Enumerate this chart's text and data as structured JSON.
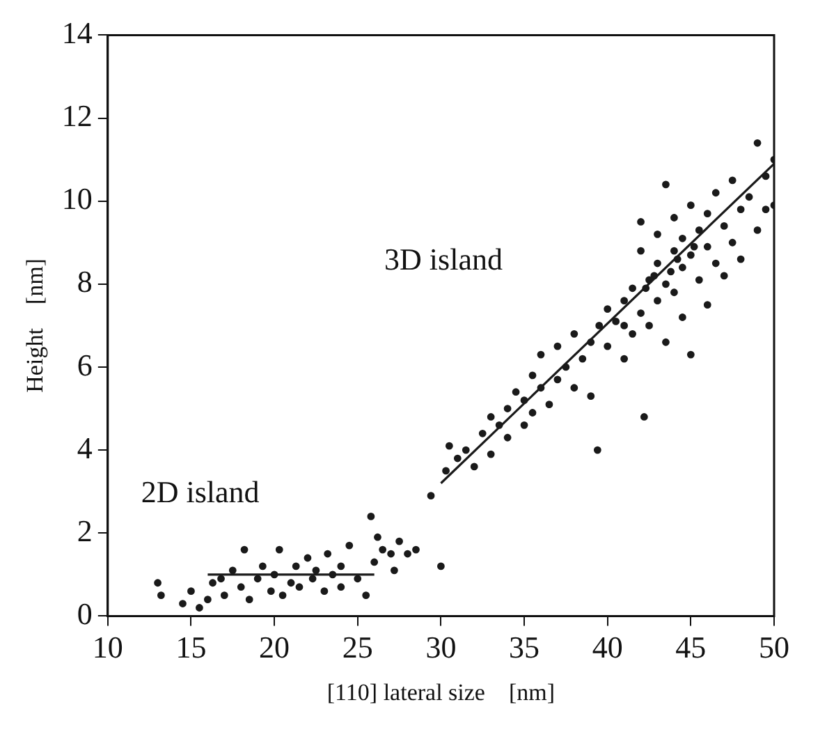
{
  "chart_data": {
    "type": "scatter",
    "xlabel": "[110] lateral size    [nm]",
    "ylabel": "Height    [nm]",
    "xlim": [
      10,
      50
    ],
    "xticks": [
      10,
      15,
      20,
      25,
      30,
      35,
      40,
      45,
      50
    ],
    "ylim": [
      0,
      14
    ],
    "yticks": [
      0,
      2,
      4,
      6,
      8,
      10,
      12,
      14
    ],
    "annotations": [
      "2D island",
      "3D island"
    ],
    "series": [
      {
        "marker": "circle",
        "color": "#1a1a1a",
        "x": [
          13,
          13.2,
          14.5,
          15,
          15.5,
          16,
          16.3,
          16.8,
          17,
          17.5,
          18,
          18.2,
          18.5,
          19,
          19.3,
          19.8,
          20,
          20.3,
          20.5,
          21,
          21.3,
          21.5,
          22,
          22.3,
          22.5,
          23,
          23.2,
          23.5,
          24,
          24,
          24.5,
          25,
          25.8,
          25.5,
          26,
          26.2,
          26.5,
          27,
          27.2,
          27.5,
          29.4,
          28,
          28.5,
          30,
          30.3,
          30.5,
          31,
          31.5,
          32,
          32.5,
          33,
          33,
          33.5,
          34,
          34,
          34.5,
          35,
          35,
          35.5,
          35.5,
          36,
          36,
          36.5,
          37,
          37,
          39.4,
          37.5,
          38,
          38,
          38.5,
          39,
          39,
          39.5,
          40,
          40,
          42.2,
          40.5,
          41,
          41,
          41.5,
          41.5,
          42,
          42,
          42,
          42.5,
          42.5,
          43,
          43,
          43,
          43.5,
          43.5,
          43.5,
          44,
          44,
          44,
          44.5,
          44.5,
          44.5,
          45,
          45,
          45,
          45.5,
          45.5,
          46,
          46,
          46,
          46.5,
          46.5,
          47,
          47,
          47.5,
          47.5,
          48,
          48,
          48.5,
          49,
          49,
          49.5,
          49.5,
          50,
          50,
          41,
          42.3,
          43.8,
          44.2,
          45.2,
          42.8
        ],
        "values": [
          0.8,
          0.5,
          0.3,
          0.6,
          0.2,
          0.4,
          0.8,
          0.9,
          0.5,
          1.1,
          0.7,
          1.6,
          0.4,
          0.9,
          1.2,
          0.6,
          1.0,
          1.6,
          0.5,
          0.8,
          1.2,
          0.7,
          1.4,
          0.9,
          1.1,
          0.6,
          1.5,
          1.0,
          1.2,
          0.7,
          1.7,
          0.9,
          2.4,
          0.5,
          1.3,
          1.9,
          1.6,
          1.5,
          1.1,
          1.8,
          2.9,
          1.5,
          1.6,
          1.2,
          3.5,
          4.1,
          3.8,
          4.0,
          3.6,
          4.4,
          4.8,
          3.9,
          4.6,
          5.0,
          4.3,
          5.4,
          5.2,
          4.6,
          5.8,
          4.9,
          5.5,
          6.3,
          5.1,
          5.7,
          6.5,
          4.0,
          6.0,
          5.5,
          6.8,
          6.2,
          6.6,
          5.3,
          7.0,
          6.5,
          7.4,
          4.8,
          7.1,
          7.6,
          6.2,
          7.9,
          6.8,
          8.8,
          7.3,
          9.5,
          8.1,
          7.0,
          8.5,
          9.2,
          7.6,
          10.4,
          8.0,
          6.6,
          8.8,
          9.6,
          7.8,
          8.4,
          9.1,
          7.2,
          9.9,
          8.7,
          6.3,
          9.3,
          8.1,
          9.7,
          8.9,
          7.5,
          10.2,
          8.5,
          9.4,
          8.2,
          10.5,
          9.0,
          9.8,
          8.6,
          10.1,
          11.4,
          9.3,
          10.6,
          9.8,
          11.0,
          9.9,
          7.0,
          7.9,
          8.3,
          8.6,
          8.9,
          8.2
        ]
      },
      {
        "type": "line",
        "marker": "none",
        "color": "#1a1a1a",
        "x": [
          16,
          26
        ],
        "values": [
          1.0,
          1.0
        ]
      },
      {
        "type": "line",
        "marker": "none",
        "color": "#1a1a1a",
        "x": [
          30,
          50
        ],
        "values": [
          3.2,
          10.9
        ]
      }
    ]
  }
}
